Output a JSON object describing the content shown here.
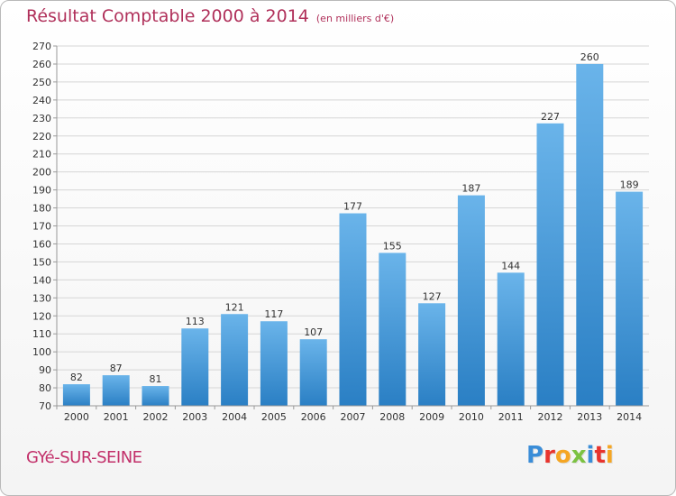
{
  "header": {
    "title": "Résultat Comptable 2000 à 2014",
    "unit": "(en milliers d'€)"
  },
  "footer": {
    "commune": "GYé-SUR-SEINE",
    "logo_letters": [
      "P",
      "r",
      "o",
      "x",
      "i",
      "t",
      "i"
    ],
    "logo_colors": [
      "#3a8dd8",
      "#e8342e",
      "#f5a623",
      "#7cc242",
      "#3a8dd8",
      "#e8342e",
      "#f5a623"
    ]
  },
  "colors": {
    "title": "#b0305a",
    "bar_light": "#6ab4ea",
    "bar_dark": "#2a7fc4",
    "grid": "#d6d6d6"
  },
  "chart_data": {
    "type": "bar",
    "title": "Résultat Comptable 2000 à 2014",
    "xlabel": "",
    "ylabel": "",
    "categories": [
      "2000",
      "2001",
      "2002",
      "2003",
      "2004",
      "2005",
      "2006",
      "2007",
      "2008",
      "2009",
      "2010",
      "2011",
      "2012",
      "2013",
      "2014"
    ],
    "values": [
      82,
      87,
      81,
      113,
      121,
      117,
      107,
      177,
      155,
      127,
      187,
      144,
      227,
      260,
      189
    ],
    "ylim": [
      70,
      270
    ],
    "ytick_step": 10,
    "grid": true,
    "legend": "none"
  }
}
